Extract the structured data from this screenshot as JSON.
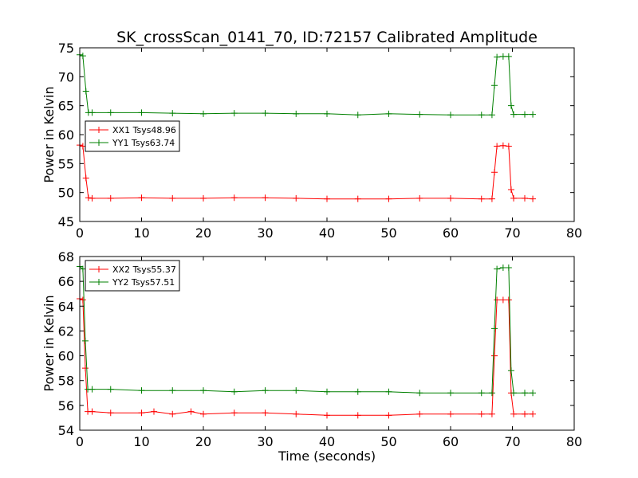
{
  "chart_data": {
    "title": "SK_crossScan_0141_70, ID:72157 Calibrated Amplitude",
    "xlabel": "Time (seconds)",
    "panels": [
      {
        "type": "line",
        "ylabel": "Power in Kelvin",
        "xlim": [
          0,
          80
        ],
        "ylim": [
          45,
          75
        ],
        "x_ticks": [
          0,
          10,
          20,
          30,
          40,
          50,
          60,
          70,
          80
        ],
        "y_ticks": [
          45,
          50,
          55,
          60,
          65,
          70,
          75
        ],
        "legend_position": "upper-left",
        "series": [
          {
            "name": "XX1 Tsys48.96",
            "color": "#ff0000",
            "points": [
              [
                0.0,
                58.2
              ],
              [
                0.5,
                58.0
              ],
              [
                1.0,
                52.5
              ],
              [
                1.4,
                49.1
              ],
              [
                2,
                49.0
              ],
              [
                5,
                49.0
              ],
              [
                10,
                49.1
              ],
              [
                15,
                49.0
              ],
              [
                20,
                49.0
              ],
              [
                25,
                49.1
              ],
              [
                30,
                49.1
              ],
              [
                35,
                49.0
              ],
              [
                40,
                48.9
              ],
              [
                45,
                48.9
              ],
              [
                50,
                48.9
              ],
              [
                55,
                49.0
              ],
              [
                60,
                49.0
              ],
              [
                65,
                48.9
              ],
              [
                66.7,
                48.9
              ],
              [
                67.1,
                53.5
              ],
              [
                67.5,
                58.0
              ],
              [
                68.5,
                58.1
              ],
              [
                69.4,
                58.0
              ],
              [
                69.8,
                50.5
              ],
              [
                70.2,
                49.0
              ],
              [
                72,
                49.0
              ],
              [
                73.3,
                48.9
              ]
            ]
          },
          {
            "name": "YY1 Tsys63.74",
            "color": "#008000",
            "points": [
              [
                0.0,
                73.8
              ],
              [
                0.5,
                73.6
              ],
              [
                1.0,
                67.5
              ],
              [
                1.4,
                63.8
              ],
              [
                2,
                63.8
              ],
              [
                5,
                63.8
              ],
              [
                10,
                63.8
              ],
              [
                15,
                63.7
              ],
              [
                20,
                63.6
              ],
              [
                25,
                63.7
              ],
              [
                30,
                63.7
              ],
              [
                35,
                63.6
              ],
              [
                40,
                63.6
              ],
              [
                45,
                63.4
              ],
              [
                50,
                63.6
              ],
              [
                55,
                63.5
              ],
              [
                60,
                63.4
              ],
              [
                65,
                63.4
              ],
              [
                66.7,
                63.4
              ],
              [
                67.1,
                68.5
              ],
              [
                67.5,
                73.4
              ],
              [
                68.5,
                73.5
              ],
              [
                69.4,
                73.5
              ],
              [
                69.8,
                65.0
              ],
              [
                70.2,
                63.5
              ],
              [
                72,
                63.5
              ],
              [
                73.3,
                63.5
              ]
            ]
          }
        ]
      },
      {
        "type": "line",
        "ylabel": "Power in Kelvin",
        "xlim": [
          0,
          80
        ],
        "ylim": [
          54,
          68
        ],
        "x_ticks": [
          0,
          10,
          20,
          30,
          40,
          50,
          60,
          70,
          80
        ],
        "y_ticks": [
          54,
          56,
          58,
          60,
          62,
          64,
          66,
          68
        ],
        "legend_position": "upper-left",
        "series": [
          {
            "name": "XX2 Tsys55.37",
            "color": "#ff0000",
            "points": [
              [
                0.0,
                64.6
              ],
              [
                0.5,
                64.5
              ],
              [
                0.9,
                59.0
              ],
              [
                1.3,
                55.5
              ],
              [
                2,
                55.5
              ],
              [
                5,
                55.4
              ],
              [
                10,
                55.4
              ],
              [
                12,
                55.5
              ],
              [
                15,
                55.3
              ],
              [
                18,
                55.5
              ],
              [
                20,
                55.3
              ],
              [
                25,
                55.4
              ],
              [
                30,
                55.4
              ],
              [
                35,
                55.3
              ],
              [
                40,
                55.2
              ],
              [
                45,
                55.2
              ],
              [
                50,
                55.2
              ],
              [
                55,
                55.3
              ],
              [
                60,
                55.3
              ],
              [
                65,
                55.3
              ],
              [
                66.7,
                55.3
              ],
              [
                67.1,
                60.0
              ],
              [
                67.5,
                64.5
              ],
              [
                68.5,
                64.5
              ],
              [
                69.4,
                64.5
              ],
              [
                69.8,
                57.0
              ],
              [
                70.2,
                55.3
              ],
              [
                72,
                55.3
              ],
              [
                73.3,
                55.3
              ]
            ]
          },
          {
            "name": "YY2 Tsys57.51",
            "color": "#008000",
            "points": [
              [
                0.0,
                67.2
              ],
              [
                0.5,
                67.0
              ],
              [
                0.9,
                61.2
              ],
              [
                1.3,
                57.3
              ],
              [
                2,
                57.3
              ],
              [
                5,
                57.3
              ],
              [
                10,
                57.2
              ],
              [
                15,
                57.2
              ],
              [
                20,
                57.2
              ],
              [
                25,
                57.1
              ],
              [
                30,
                57.2
              ],
              [
                35,
                57.2
              ],
              [
                40,
                57.1
              ],
              [
                45,
                57.1
              ],
              [
                50,
                57.1
              ],
              [
                55,
                57.0
              ],
              [
                60,
                57.0
              ],
              [
                65,
                57.0
              ],
              [
                66.7,
                57.0
              ],
              [
                67.1,
                62.2
              ],
              [
                67.5,
                67.0
              ],
              [
                68.5,
                67.1
              ],
              [
                69.4,
                67.1
              ],
              [
                69.8,
                58.8
              ],
              [
                70.2,
                57.0
              ],
              [
                72,
                57.0
              ],
              [
                73.3,
                57.0
              ]
            ]
          }
        ]
      }
    ]
  }
}
